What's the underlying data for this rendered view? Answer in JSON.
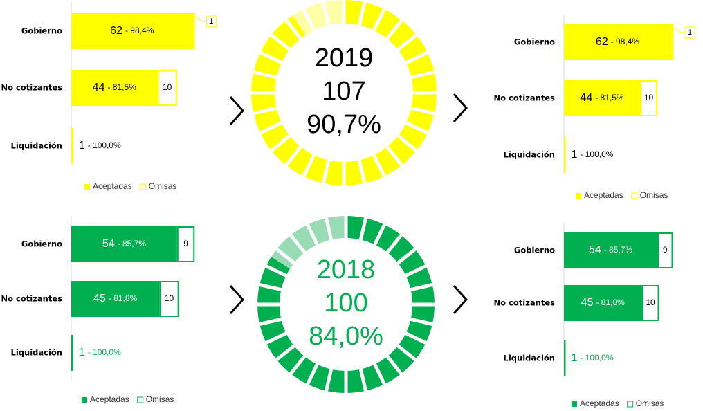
{
  "chart_data": [
    {
      "type": "bar",
      "orientation": "horizontal",
      "stacked": true,
      "label_color": "#000000",
      "legend": "bottom",
      "categories": [
        "Gobierno",
        "No cotizantes",
        "Liquidación"
      ],
      "series": [
        {
          "name": "Aceptadas",
          "color": "#ffff00",
          "style": "filled",
          "values": [
            62,
            44,
            1
          ],
          "share_labels": [
            "- 98,4%",
            "- 81,5%",
            "- 100,0%"
          ]
        },
        {
          "name": "Omisas",
          "color": "#ffff00",
          "style": "outline",
          "values": [
            1,
            10,
            null
          ]
        }
      ]
    },
    {
      "type": "donut",
      "title": "2019",
      "values": [
        107,
        11
      ],
      "colors": [
        "#ffff00",
        "#ffffa8"
      ],
      "center_label": "90,7%",
      "text_color": "#000000"
    },
    {
      "type": "bar",
      "orientation": "horizontal",
      "stacked": true,
      "label_color": "#000000",
      "legend": "bottom",
      "categories": [
        "Gobierno",
        "No cotizantes",
        "Liquidación"
      ],
      "series": [
        {
          "name": "Aceptadas",
          "color": "#ffff00",
          "style": "filled",
          "values": [
            62,
            44,
            1
          ],
          "share_labels": [
            "- 98,4%",
            "- 81,5%",
            "- 100,0%"
          ]
        },
        {
          "name": "Omisas",
          "color": "#ffff00",
          "style": "outline",
          "values": [
            1,
            10,
            null
          ]
        }
      ]
    },
    {
      "type": "bar",
      "orientation": "horizontal",
      "stacked": true,
      "label_color": "#00b050",
      "legend": "bottom",
      "categories": [
        "Gobierno",
        "No cotizantes",
        "Liquidación"
      ],
      "series": [
        {
          "name": "Aceptadas",
          "color": "#00b050",
          "style": "filled",
          "values": [
            54,
            45,
            1
          ],
          "share_labels": [
            "- 85,7%",
            "- 81,8%",
            "- 100,0%"
          ]
        },
        {
          "name": "Omisas",
          "color": "#00b050",
          "style": "outline",
          "values": [
            9,
            10,
            null
          ]
        }
      ]
    },
    {
      "type": "donut",
      "title": "2018",
      "values": [
        100,
        19
      ],
      "colors": [
        "#00b050",
        "#99dbb4"
      ],
      "center_label": "84,0%",
      "text_color": "#00b050"
    },
    {
      "type": "bar",
      "orientation": "horizontal",
      "stacked": true,
      "label_color": "#00b050",
      "legend": "bottom",
      "categories": [
        "Gobierno",
        "No cotizantes",
        "Liquidación"
      ],
      "series": [
        {
          "name": "Aceptadas",
          "color": "#00b050",
          "style": "filled",
          "values": [
            54,
            45,
            1
          ],
          "share_labels": [
            "- 85,7%",
            "- 81,8%",
            "- 100,0%"
          ]
        },
        {
          "name": "Omisas",
          "color": "#00b050",
          "style": "outline",
          "values": [
            9,
            10,
            null
          ]
        }
      ]
    }
  ]
}
